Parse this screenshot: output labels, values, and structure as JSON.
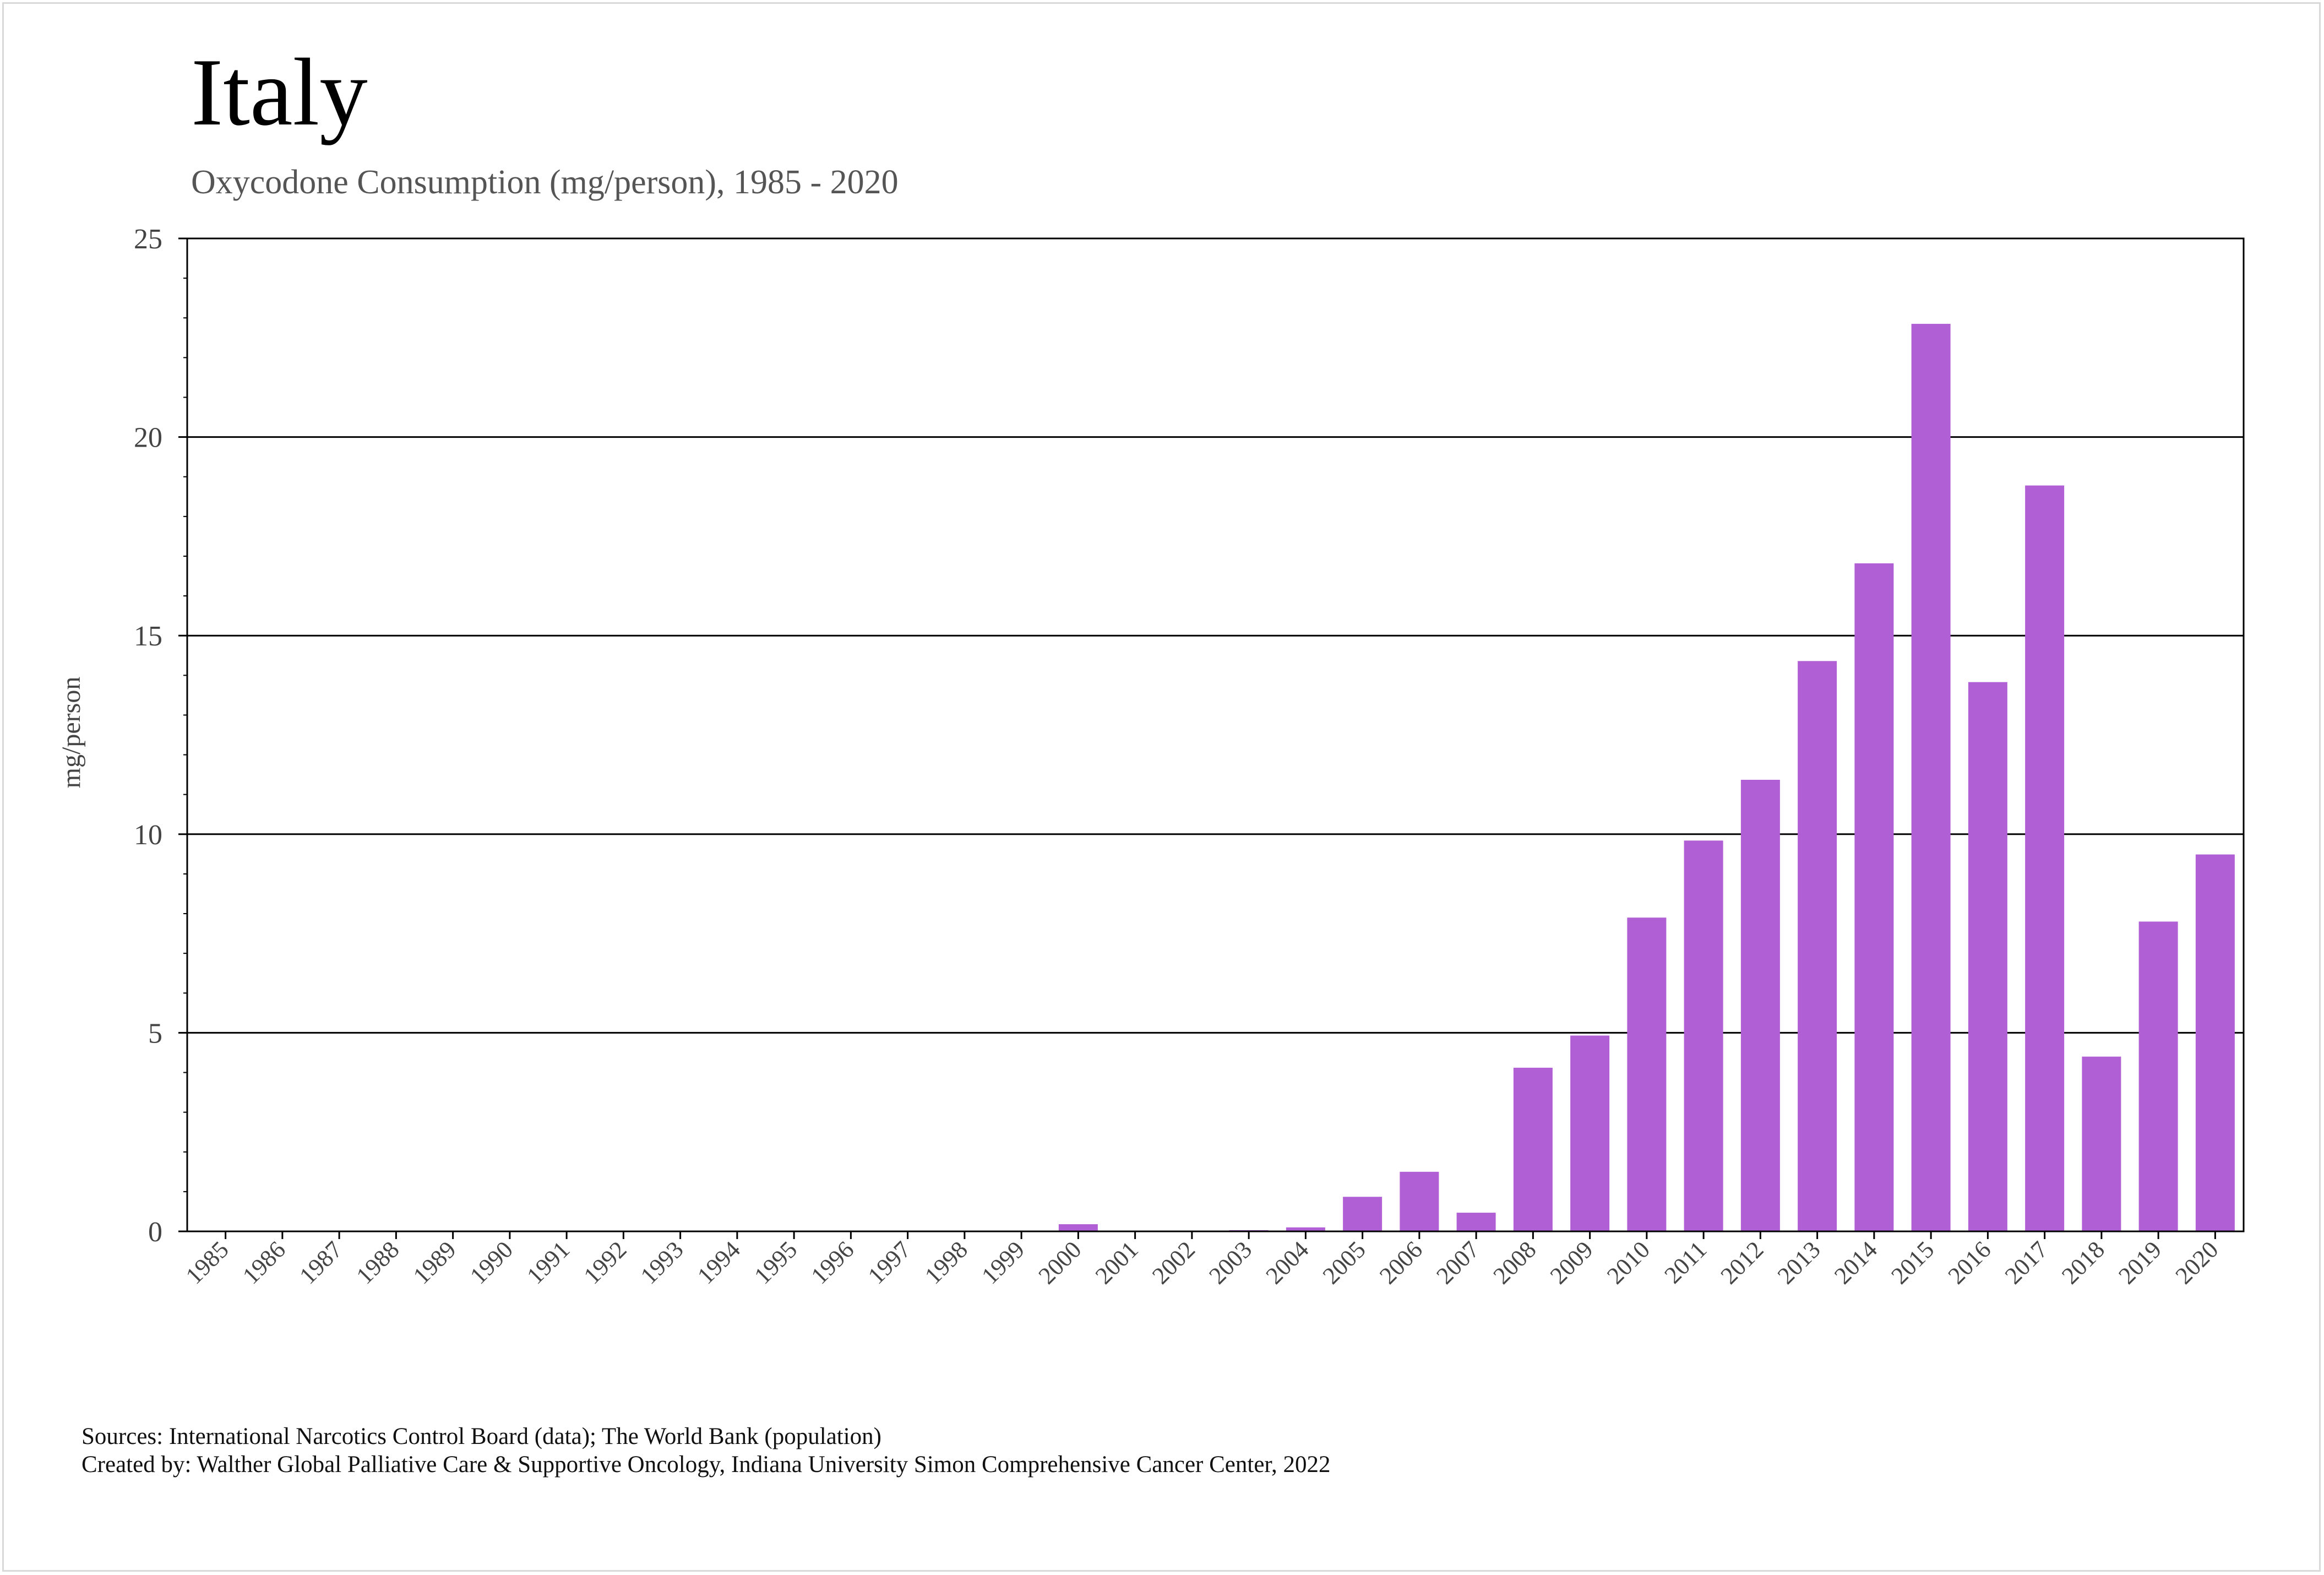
{
  "chart_data": {
    "type": "bar",
    "title": "Italy",
    "subtitle": "Oxycodone Consumption (mg/person), 1985 - 2020",
    "xlabel": "",
    "ylabel": "mg/person",
    "ylim": [
      0,
      25
    ],
    "yticks": [
      0,
      5,
      10,
      15,
      20,
      25
    ],
    "grid": true,
    "legend": "none",
    "bar_color": "#b05fd4",
    "categories": [
      "1985",
      "1986",
      "1987",
      "1988",
      "1989",
      "1990",
      "1991",
      "1992",
      "1993",
      "1994",
      "1995",
      "1996",
      "1997",
      "1998",
      "1999",
      "2000",
      "2001",
      "2002",
      "2003",
      "2004",
      "2005",
      "2006",
      "2007",
      "2008",
      "2009",
      "2010",
      "2011",
      "2012",
      "2013",
      "2014",
      "2015",
      "2016",
      "2017",
      "2018",
      "2019",
      "2020"
    ],
    "values": [
      0,
      0,
      0,
      0.01,
      0.01,
      0.01,
      0,
      0.01,
      0,
      0,
      0.02,
      0.02,
      0.02,
      0,
      0,
      0.18,
      0.02,
      0.02,
      0.03,
      0.1,
      0.87,
      1.5,
      0.47,
      4.12,
      4.93,
      7.9,
      9.84,
      11.37,
      14.36,
      16.82,
      22.85,
      13.83,
      18.78,
      4.4,
      7.8,
      9.49
    ]
  },
  "footer": {
    "sources": "Sources: International Narcotics Control Board (data); The World Bank (population)",
    "created_by": "Created by: Walther Global Palliative Care & Supportive Oncology, Indiana University Simon Comprehensive Cancer Center, 2022"
  }
}
